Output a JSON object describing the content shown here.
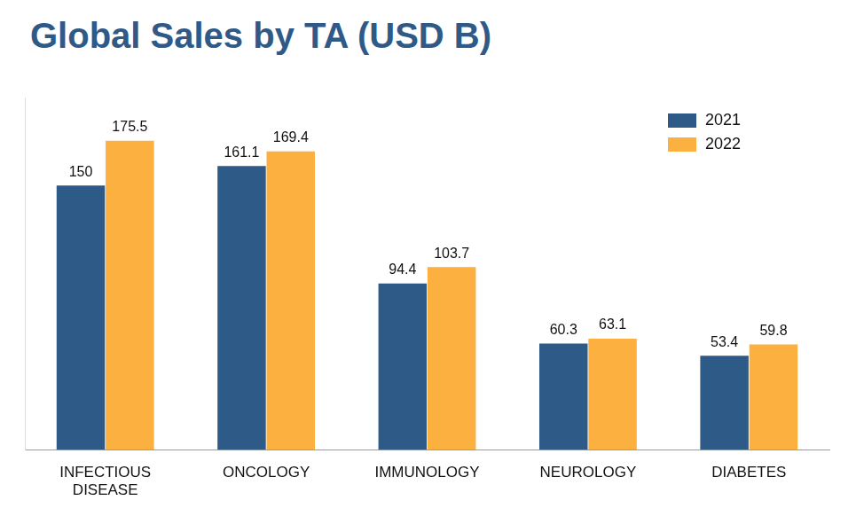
{
  "chart_data": {
    "type": "bar",
    "title": "Global Sales by TA (USD B)",
    "categories": [
      "INFECTIOUS DISEASE",
      "ONCOLOGY",
      "IMMUNOLOGY",
      "NEUROLOGY",
      "DIABETES"
    ],
    "series": [
      {
        "name": "2021",
        "color": "#2e5a87",
        "values": [
          150,
          161.1,
          94.4,
          60.3,
          53.4
        ]
      },
      {
        "name": "2022",
        "color": "#fbb040",
        "values": [
          175.5,
          169.4,
          103.7,
          63.1,
          59.8
        ]
      }
    ],
    "ylim": [
      0,
      200
    ],
    "grid": false,
    "legend": "upper right",
    "data_labels": true,
    "tick_labels": "x"
  }
}
